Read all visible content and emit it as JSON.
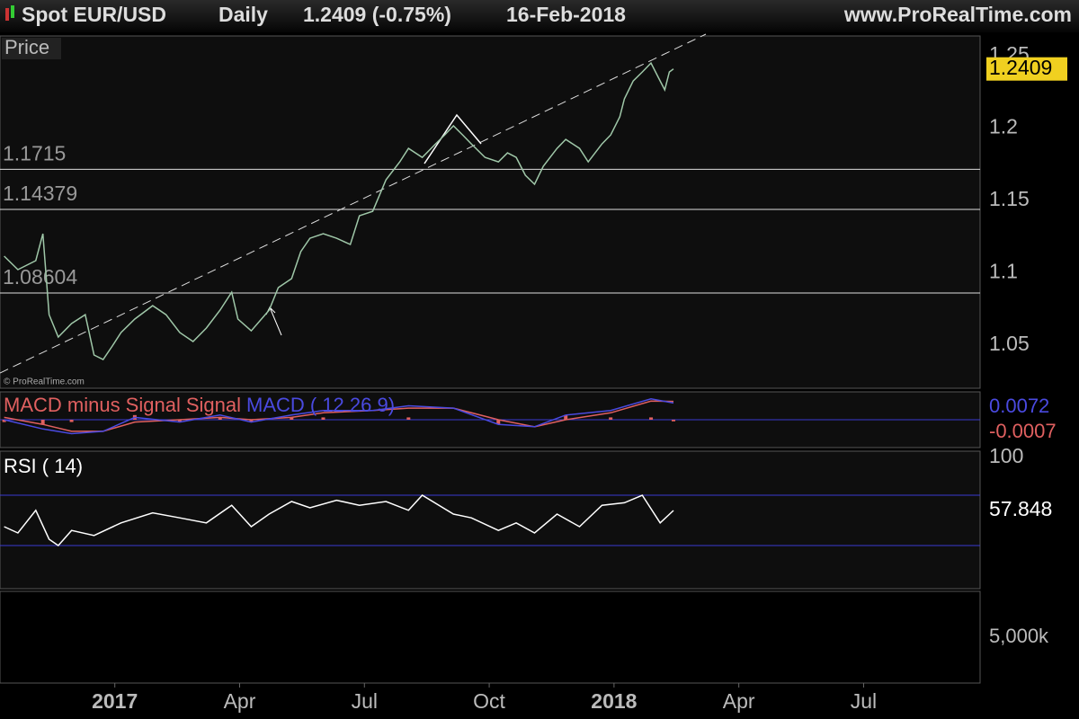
{
  "header": {
    "title": "Spot EUR/USD",
    "timeframe": "Daily",
    "quote": "1.2409 (-0.75%)",
    "date": "16-Feb-2018",
    "site": "www.ProRealTime.com"
  },
  "watermark": "© ProRealTime.com",
  "chart_data": [
    {
      "type": "line",
      "title": "Price",
      "color": "#9fc7a8",
      "xlim": [
        -2.76,
        20.8
      ],
      "xticks": [
        {
          "value": 0,
          "label": "2017"
        },
        {
          "value": 3,
          "label": "Apr"
        },
        {
          "value": 6,
          "label": "Jul"
        },
        {
          "value": 9,
          "label": "Oct"
        },
        {
          "value": 12,
          "label": "2018"
        },
        {
          "value": 15,
          "label": "Apr"
        },
        {
          "value": 18,
          "label": "Jul"
        }
      ],
      "ylim": [
        1.0202,
        1.2637
      ],
      "yticks": [
        1.05,
        1.1,
        1.15,
        1.2,
        1.25
      ],
      "levels": [
        1.1715,
        1.14379,
        1.08604
      ],
      "x": [
        -2.66,
        -2.33,
        -1.9,
        -1.73,
        -1.58,
        -1.36,
        -1.04,
        -0.71,
        -0.5,
        -0.28,
        -0.06,
        0.15,
        0.48,
        0.91,
        1.23,
        1.56,
        1.88,
        2.2,
        2.53,
        2.81,
        2.96,
        3.28,
        3.71,
        3.93,
        4.25,
        4.47,
        4.69,
        5.01,
        5.33,
        5.66,
        5.88,
        6.2,
        6.52,
        6.85,
        7.06,
        7.39,
        7.71,
        7.93,
        8.14,
        8.36,
        8.57,
        8.9,
        9.22,
        9.44,
        9.65,
        9.87,
        10.09,
        10.3,
        10.63,
        10.84,
        11.17,
        11.38,
        11.71,
        11.92,
        12.14,
        12.25,
        12.46,
        12.68,
        12.89,
        13.11,
        13.22,
        13.33,
        13.43
      ],
      "values": [
        1.1115,
        1.1022,
        1.1084,
        1.127,
        1.0711,
        1.0556,
        1.0649,
        1.0711,
        1.0432,
        1.0401,
        1.0494,
        1.0587,
        1.068,
        1.0773,
        1.0711,
        1.0587,
        1.0525,
        1.0618,
        1.0742,
        1.0866,
        1.068,
        1.0599,
        1.0742,
        1.0898,
        1.096,
        1.1146,
        1.1239,
        1.127,
        1.1239,
        1.1196,
        1.1394,
        1.1425,
        1.1643,
        1.1767,
        1.186,
        1.1798,
        1.1891,
        1.1953,
        1.2016,
        1.1953,
        1.1891,
        1.1798,
        1.1767,
        1.1829,
        1.1798,
        1.1674,
        1.1612,
        1.1736,
        1.186,
        1.1922,
        1.186,
        1.1767,
        1.1891,
        1.1953,
        1.2078,
        1.2202,
        1.2326,
        1.2388,
        1.245,
        1.2326,
        1.2264,
        1.2388,
        1.2409
      ]
    },
    {
      "type": "macd",
      "xlim": [
        -2.76,
        20.8
      ],
      "ylim": [
        -0.012,
        0.012
      ],
      "x": [
        -2.66,
        -1.73,
        -1.04,
        -0.28,
        0.48,
        1.56,
        2.53,
        3.28,
        4.25,
        5.01,
        6.2,
        7.06,
        8.14,
        9.22,
        10.09,
        10.84,
        11.92,
        12.89,
        13.43
      ],
      "series": [
        {
          "name": "MACD minus Signal",
          "color": "#e06060",
          "values": [
            -0.001,
            -0.002,
            -0.001,
            0,
            0.002,
            -0.001,
            0.001,
            -0.001,
            0.001,
            0.001,
            0,
            0.001,
            0,
            -0.002,
            0,
            0.002,
            0.001,
            0.001,
            -0.0007
          ]
        },
        {
          "name": "Signal",
          "color": "#e06060",
          "values": [
            0.001,
            -0.002,
            -0.005,
            -0.005,
            -0.001,
            0,
            0.001,
            0,
            0.001,
            0.003,
            0.004,
            0.005,
            0.005,
            0,
            -0.003,
            0,
            0.003,
            0.008,
            0.0079
          ]
        },
        {
          "name": "MACD ( 12 26 9)",
          "color": "#4a4ae0",
          "values": [
            0,
            -0.004,
            -0.006,
            -0.005,
            0.001,
            -0.001,
            0.002,
            -0.001,
            0.002,
            0.004,
            0.004,
            0.006,
            0.005,
            -0.002,
            -0.003,
            0.002,
            0.004,
            0.009,
            0.0072
          ]
        }
      ]
    },
    {
      "type": "line",
      "title": "RSI ( 14)",
      "color": "#ffffff",
      "xlim": [
        -2.76,
        20.8
      ],
      "ylim": [
        -4.3,
        105
      ],
      "yticks": [
        100
      ],
      "levels": [
        70,
        30
      ],
      "x": [
        -2.66,
        -2.33,
        -1.9,
        -1.58,
        -1.36,
        -1.04,
        -0.5,
        0.15,
        0.91,
        1.56,
        2.2,
        2.81,
        3.28,
        3.71,
        4.25,
        4.69,
        5.33,
        5.88,
        6.52,
        7.06,
        7.39,
        8.14,
        8.57,
        9.22,
        9.65,
        10.09,
        10.63,
        11.17,
        11.71,
        12.25,
        12.68,
        13.11,
        13.43
      ],
      "values": [
        45,
        40,
        58,
        35,
        30,
        42,
        38,
        48,
        56,
        52,
        48,
        62,
        45,
        55,
        65,
        60,
        66,
        62,
        65,
        58,
        70,
        55,
        52,
        42,
        48,
        40,
        55,
        45,
        62,
        64,
        70,
        48,
        57.848
      ]
    },
    {
      "type": "volume",
      "ylim": [
        0,
        10000000
      ],
      "yticks": [
        {
          "value": 5000000,
          "label": "5,000k"
        }
      ]
    }
  ]
}
